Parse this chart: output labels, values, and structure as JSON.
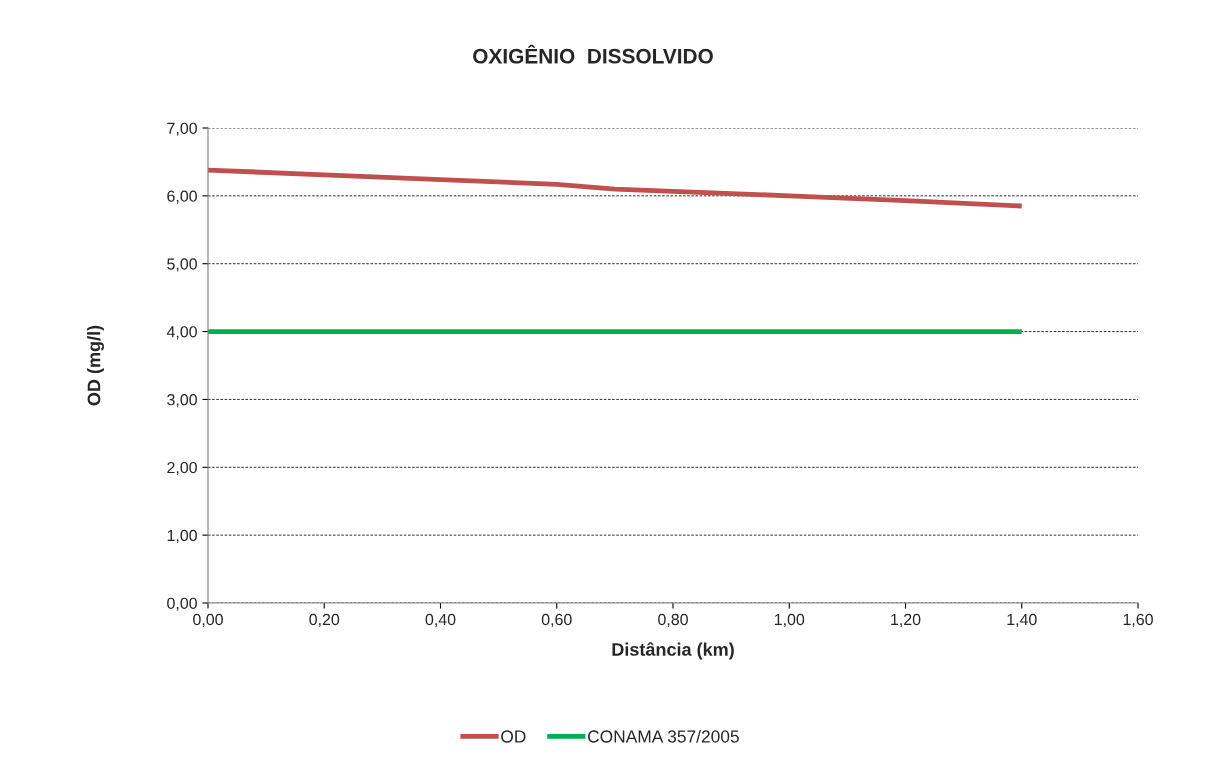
{
  "chart_data": {
    "type": "line",
    "title": "OXIGÊNIO  DISSOLVIDO",
    "xlabel": "Distância (km)",
    "ylabel": "OD (mg/l)",
    "series": [
      {
        "name": "OD",
        "color": "#c0504d",
        "x": [
          0,
          0.2,
          0.4,
          0.6,
          0.7,
          1.0,
          1.2,
          1.4
        ],
        "values": [
          6.38,
          6.31,
          6.24,
          6.17,
          6.1,
          6.0,
          5.93,
          5.85
        ]
      },
      {
        "name": "CONAMA 357/2005",
        "color": "#00b050",
        "x": [
          0,
          1.4
        ],
        "values": [
          4.0,
          4.0
        ]
      }
    ],
    "xlim": [
      0,
      1.6
    ],
    "xticks": [
      {
        "value": 0,
        "label": "0,00"
      },
      {
        "value": 0.2,
        "label": "0,20"
      },
      {
        "value": 0.4,
        "label": "0,40"
      },
      {
        "value": 0.6,
        "label": "0,60"
      },
      {
        "value": 0.8,
        "label": "0,80"
      },
      {
        "value": 1.0,
        "label": "1,00"
      },
      {
        "value": 1.2,
        "label": "1,20"
      },
      {
        "value": 1.4,
        "label": "1,40"
      },
      {
        "value": 1.6,
        "label": "1,60"
      }
    ],
    "ylim": [
      0,
      7
    ],
    "yticks": [
      {
        "value": 0,
        "label": "0,00"
      },
      {
        "value": 1,
        "label": "1,00"
      },
      {
        "value": 2,
        "label": "2,00"
      },
      {
        "value": 3,
        "label": "3,00"
      },
      {
        "value": 4,
        "label": "4,00"
      },
      {
        "value": 5,
        "label": "5,00"
      },
      {
        "value": 6,
        "label": "6,00"
      },
      {
        "value": 7,
        "label": "7,00"
      }
    ],
    "grid": "y",
    "legend": "bottom"
  }
}
